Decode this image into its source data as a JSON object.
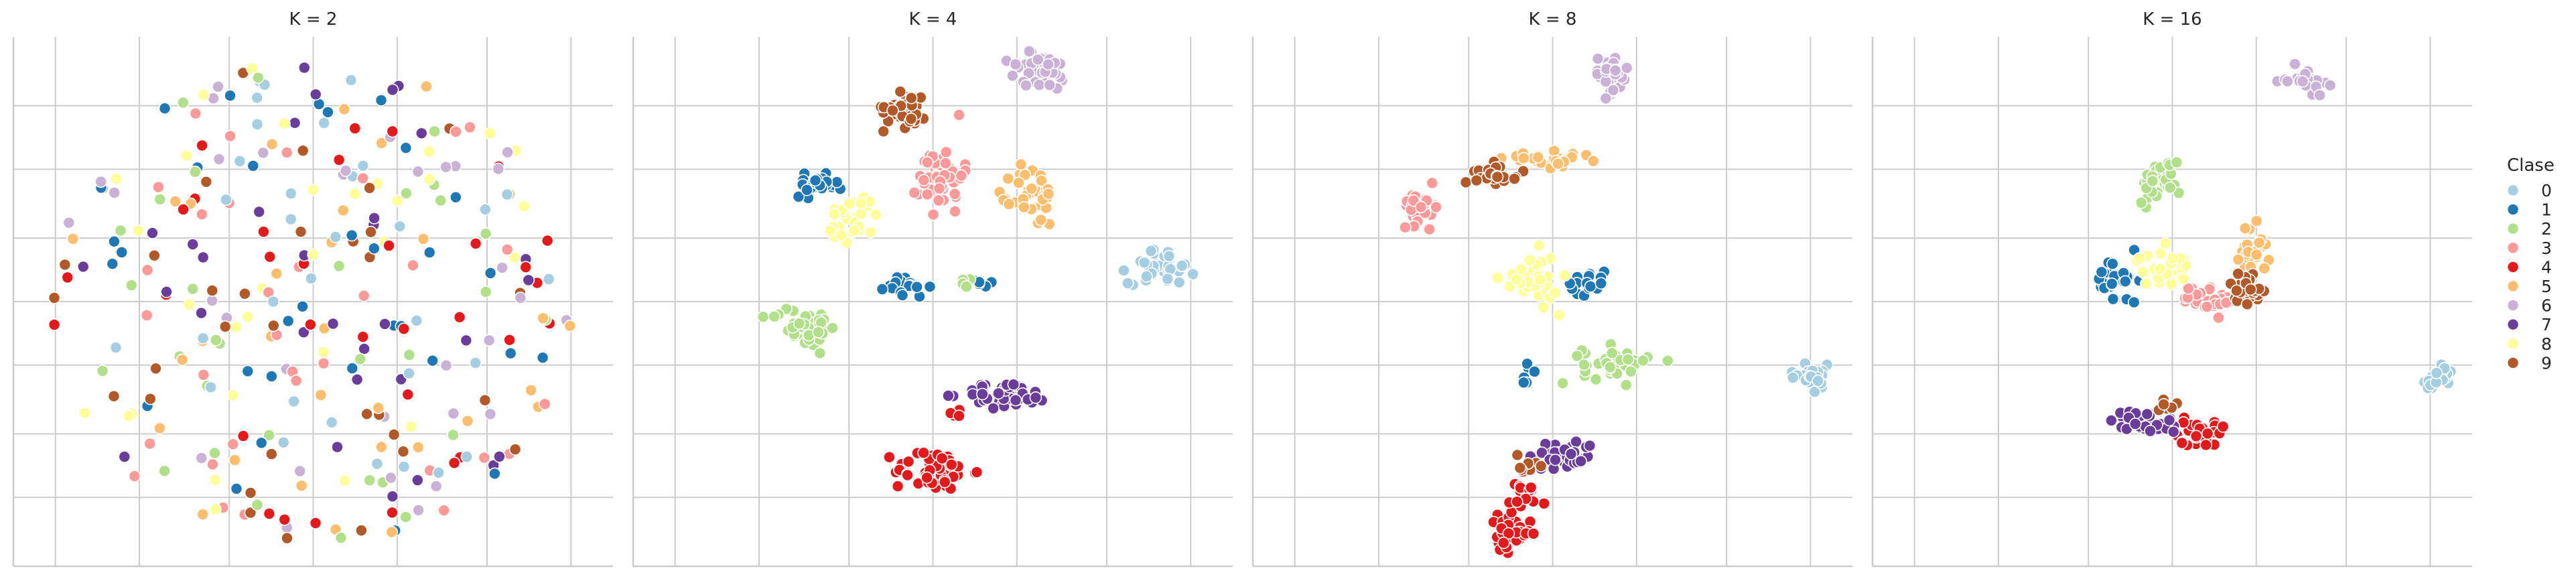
{
  "chart_data": {
    "type": "scatter",
    "legend": {
      "title": "Clase",
      "position": "right"
    },
    "grid": true,
    "classes": [
      {
        "label": "0",
        "color": "#a6cee3"
      },
      {
        "label": "1",
        "color": "#1f78b4"
      },
      {
        "label": "2",
        "color": "#b2df8a"
      },
      {
        "label": "3",
        "color": "#fb9a99"
      },
      {
        "label": "4",
        "color": "#e31a1c"
      },
      {
        "label": "5",
        "color": "#fdbf6f"
      },
      {
        "label": "6",
        "color": "#cab2d6"
      },
      {
        "label": "7",
        "color": "#6a3d9a"
      },
      {
        "label": "8",
        "color": "#ffff99"
      },
      {
        "label": "9",
        "color": "#b15928"
      }
    ],
    "panels": [
      {
        "title": "K = 2",
        "layout": "diffuse",
        "xlim": [
          -1.1,
          1.1
        ],
        "ylim": [
          -1.05,
          1.05
        ],
        "points_per_class": 32
      },
      {
        "title": "K = 4",
        "layout": "clusters",
        "xlim": [
          -1.1,
          1.1
        ],
        "ylim": [
          -1.05,
          1.05
        ],
        "clusters": [
          {
            "class": "0",
            "x": 0.84,
            "y": 0.14,
            "sx": 0.06,
            "sy": 0.035,
            "n": 40
          },
          {
            "class": "1",
            "x": -0.43,
            "y": 0.46,
            "sx": 0.04,
            "sy": 0.02,
            "n": 28
          },
          {
            "class": "1",
            "x": -0.1,
            "y": 0.06,
            "sx": 0.04,
            "sy": 0.025,
            "n": 16
          },
          {
            "class": "1",
            "x": 0.18,
            "y": 0.07,
            "sx": 0.02,
            "sy": 0.01,
            "n": 5
          },
          {
            "class": "2",
            "x": -0.47,
            "y": -0.1,
            "sx": 0.06,
            "sy": 0.04,
            "n": 45
          },
          {
            "class": "2",
            "x": 0.11,
            "y": 0.07,
            "sx": 0.03,
            "sy": 0.01,
            "n": 6
          },
          {
            "class": "3",
            "x": 0.03,
            "y": 0.5,
            "sx": 0.04,
            "sy": 0.07,
            "n": 45
          },
          {
            "class": "4",
            "x": 0.0,
            "y": -0.67,
            "sx": 0.07,
            "sy": 0.04,
            "n": 55
          },
          {
            "class": "4",
            "x": 0.08,
            "y": -0.45,
            "sx": 0.02,
            "sy": 0.02,
            "n": 4
          },
          {
            "class": "5",
            "x": 0.37,
            "y": 0.42,
            "sx": 0.04,
            "sy": 0.06,
            "n": 40
          },
          {
            "class": "6",
            "x": 0.39,
            "y": 0.91,
            "sx": 0.06,
            "sy": 0.04,
            "n": 45
          },
          {
            "class": "7",
            "x": 0.27,
            "y": -0.37,
            "sx": 0.08,
            "sy": 0.025,
            "n": 50
          },
          {
            "class": "8",
            "x": -0.29,
            "y": 0.33,
            "sx": 0.05,
            "sy": 0.05,
            "n": 30
          },
          {
            "class": "9",
            "x": -0.1,
            "y": 0.77,
            "sx": 0.04,
            "sy": 0.04,
            "n": 40
          }
        ]
      },
      {
        "title": "K = 8",
        "layout": "clusters",
        "xlim": [
          -1.1,
          1.1
        ],
        "ylim": [
          -1.05,
          1.05
        ],
        "clusters": [
          {
            "class": "0",
            "x": 0.95,
            "y": -0.3,
            "sx": 0.04,
            "sy": 0.025,
            "n": 30
          },
          {
            "class": "1",
            "x": 0.12,
            "y": 0.08,
            "sx": 0.035,
            "sy": 0.025,
            "n": 20
          },
          {
            "class": "1",
            "x": -0.09,
            "y": -0.28,
            "sx": 0.02,
            "sy": 0.02,
            "n": 6
          },
          {
            "class": "2",
            "x": 0.23,
            "y": -0.25,
            "sx": 0.06,
            "sy": 0.035,
            "n": 40
          },
          {
            "class": "3",
            "x": -0.48,
            "y": 0.38,
            "sx": 0.035,
            "sy": 0.035,
            "n": 30
          },
          {
            "class": "4",
            "x": -0.16,
            "y": -0.92,
            "sx": 0.04,
            "sy": 0.035,
            "n": 40
          },
          {
            "class": "4",
            "x": -0.1,
            "y": -0.75,
            "sx": 0.03,
            "sy": 0.04,
            "n": 15
          },
          {
            "class": "5",
            "x": -0.01,
            "y": 0.56,
            "sx": 0.08,
            "sy": 0.015,
            "n": 30
          },
          {
            "class": "6",
            "x": 0.21,
            "y": 0.9,
            "sx": 0.035,
            "sy": 0.04,
            "n": 30
          },
          {
            "class": "7",
            "x": 0.04,
            "y": -0.61,
            "sx": 0.06,
            "sy": 0.03,
            "n": 40
          },
          {
            "class": "8",
            "x": -0.08,
            "y": 0.09,
            "sx": 0.05,
            "sy": 0.05,
            "n": 40
          },
          {
            "class": "9",
            "x": -0.2,
            "y": 0.51,
            "sx": 0.04,
            "sy": 0.02,
            "n": 28
          },
          {
            "class": "9",
            "x": -0.1,
            "y": -0.65,
            "sx": 0.02,
            "sy": 0.03,
            "n": 8
          }
        ]
      },
      {
        "title": "K = 16",
        "layout": "clusters",
        "xlim": [
          -1.1,
          1.1
        ],
        "ylim": [
          -1.05,
          1.05
        ],
        "clusters": [
          {
            "class": "0",
            "x": 0.97,
            "y": -0.31,
            "sx": 0.03,
            "sy": 0.025,
            "n": 25
          },
          {
            "class": "1",
            "x": -0.2,
            "y": 0.08,
            "sx": 0.04,
            "sy": 0.05,
            "n": 30
          },
          {
            "class": "2",
            "x": -0.05,
            "y": 0.48,
            "sx": 0.04,
            "sy": 0.04,
            "n": 30
          },
          {
            "class": "3",
            "x": 0.14,
            "y": 0.01,
            "sx": 0.05,
            "sy": 0.03,
            "n": 30
          },
          {
            "class": "4",
            "x": 0.09,
            "y": -0.52,
            "sx": 0.05,
            "sy": 0.025,
            "n": 30
          },
          {
            "class": "5",
            "x": 0.29,
            "y": 0.2,
            "sx": 0.03,
            "sy": 0.05,
            "n": 28
          },
          {
            "class": "6",
            "x": 0.49,
            "y": 0.88,
            "sx": 0.035,
            "sy": 0.025,
            "n": 25
          },
          {
            "class": "7",
            "x": -0.1,
            "y": -0.48,
            "sx": 0.06,
            "sy": 0.025,
            "n": 35
          },
          {
            "class": "8",
            "x": -0.03,
            "y": 0.13,
            "sx": 0.05,
            "sy": 0.035,
            "n": 30
          },
          {
            "class": "9",
            "x": 0.27,
            "y": 0.06,
            "sx": 0.03,
            "sy": 0.03,
            "n": 25
          },
          {
            "class": "9",
            "x": -0.03,
            "y": -0.42,
            "sx": 0.03,
            "sy": 0.02,
            "n": 6
          }
        ]
      }
    ]
  }
}
